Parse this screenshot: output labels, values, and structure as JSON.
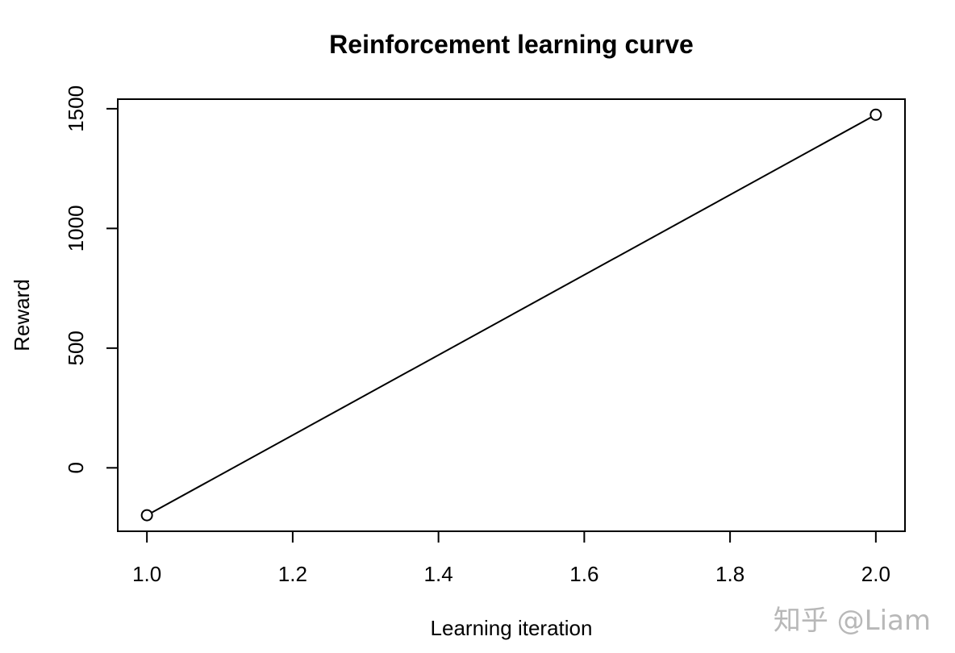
{
  "chart_data": {
    "type": "line",
    "title": "Reinforcement learning curve",
    "xlabel": "Learning iteration",
    "ylabel": "Reward",
    "x": [
      1.0,
      2.0
    ],
    "series": [
      {
        "values": [
          -198,
          1475
        ]
      }
    ],
    "x_ticks": [
      "1.0",
      "1.2",
      "1.4",
      "1.6",
      "1.8",
      "2.0"
    ],
    "y_ticks": [
      "0",
      "500",
      "1000",
      "1500"
    ],
    "xlim": [
      0.96,
      2.04
    ],
    "ylim": [
      -265,
      1540
    ],
    "marker": "open-circle",
    "grid": false,
    "legend": "none"
  },
  "watermark": "知乎 @Liam"
}
